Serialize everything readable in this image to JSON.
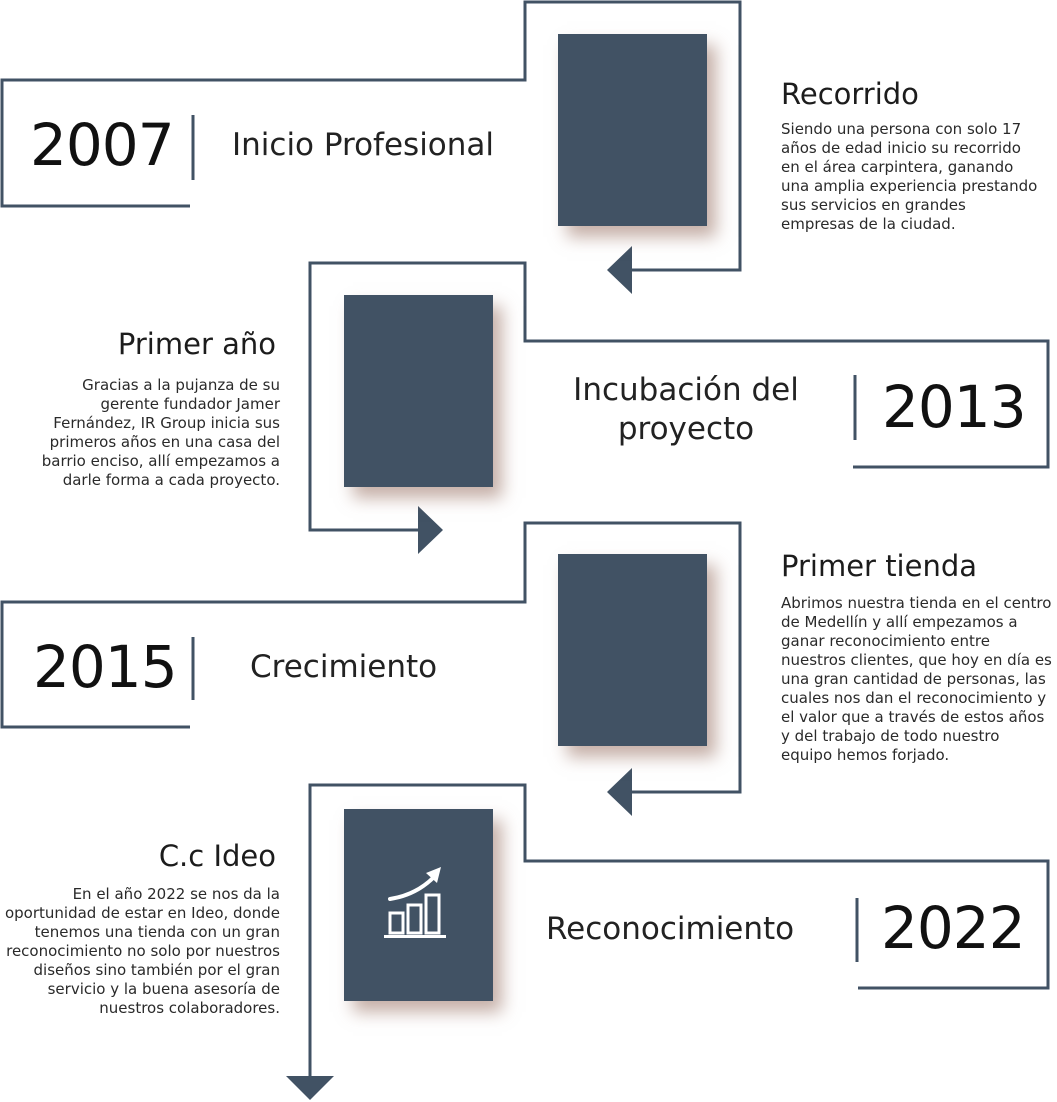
{
  "colors": {
    "line": "#415264",
    "block": "#415264",
    "shadow": "#c8a89a"
  },
  "milestones": [
    {
      "year": "2007",
      "phase": "Inicio Profesional",
      "heading": "Recorrido",
      "description": "Siendo una persona con solo 17 años de edad inicio su recorrido en el área carpintera, ganando una amplia experiencia prestando sus servicios en grandes empresas de la ciudad."
    },
    {
      "year": "2013",
      "phase": "Incubación del proyecto",
      "heading": "Primer año",
      "description": "Gracias a la pujanza de su gerente fundador Jamer Fernández,  IR Group inicia sus primeros años en una casa del barrio enciso, allí empezamos a darle forma a cada proyecto."
    },
    {
      "year": "2015",
      "phase": "Crecimiento",
      "heading": "Primer tienda",
      "description": "Abrimos nuestra tienda en el centro de Medellín y allí empezamos a ganar reconocimiento entre nuestros clientes, que hoy en día es una gran cantidad de personas, las cuales nos dan el reconocimiento y el valor que a través de estos años y del trabajo de todo nuestro equipo hemos forjado."
    },
    {
      "year": "2022",
      "phase": "Reconocimiento",
      "heading": "C.c Ideo",
      "description": "En el año 2022 se nos da la oportunidad de estar en Ideo, donde tenemos una tienda con un gran reconocimiento no solo por nuestros diseños sino también por el gran servicio y la buena asesoría de nuestros colaboradores.",
      "icon": "growth-chart-icon"
    }
  ]
}
